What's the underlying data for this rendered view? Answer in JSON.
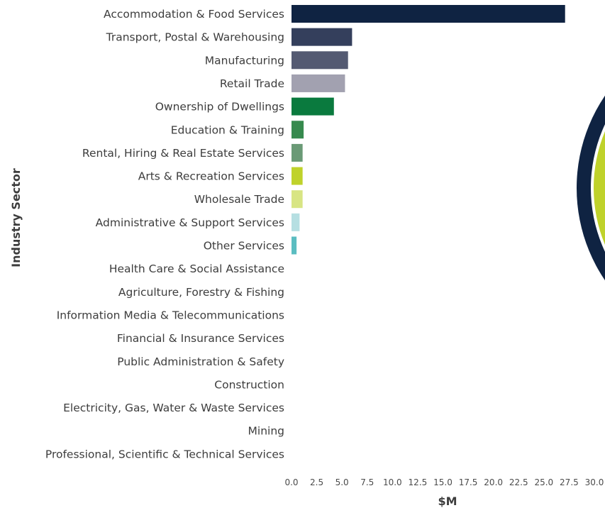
{
  "chart_data": {
    "type": "bar",
    "orientation": "horizontal",
    "title": "",
    "xlabel": "$M",
    "ylabel": "Industry Sector",
    "xlim": [
      0,
      30
    ],
    "xticks": [
      "0.0",
      "2.5",
      "5.0",
      "7.5",
      "10.0",
      "12.5",
      "15.0",
      "17.5",
      "20.0",
      "22.5",
      "25.0",
      "27.5",
      "30.0"
    ],
    "grid": false,
    "legend": "none",
    "categories": [
      "Accommodation & Food Services",
      "Transport, Postal & Warehousing",
      "Manufacturing",
      "Retail Trade",
      "Ownership of Dwellings",
      "Education & Training",
      "Rental, Hiring & Real Estate Services",
      "Arts & Recreation Services",
      "Wholesale Trade",
      "Administrative & Support Services",
      "Other Services",
      "Health Care & Social Assistance",
      "Agriculture, Forestry & Fishing",
      "Information Media & Telecommunications",
      "Financial & Insurance Services",
      "Public Administration & Safety",
      "Construction",
      "Electricity, Gas, Water & Waste Services",
      "Mining",
      "Professional, Scientific & Technical Services"
    ],
    "values": [
      27.1,
      6.0,
      5.6,
      5.3,
      4.2,
      1.2,
      1.1,
      1.1,
      1.1,
      0.8,
      0.5,
      0,
      0,
      0,
      0,
      0,
      0,
      0,
      0,
      0
    ],
    "colors": [
      "#0f2342",
      "#343f5c",
      "#545a72",
      "#a2a1b0",
      "#0a7a3e",
      "#378a4e",
      "#6a9a76",
      "#bfd22b",
      "#d8e584",
      "#b6dfe2",
      "#5bbdc1",
      "#cccccc",
      "#cccccc",
      "#cccccc",
      "#cccccc",
      "#cccccc",
      "#cccccc",
      "#cccccc",
      "#cccccc",
      "#cccccc"
    ]
  },
  "decor_colors": {
    "ring_outer": "#0f2342",
    "ring_inner": "#bfd22b",
    "ring_white": "#ffffff"
  }
}
